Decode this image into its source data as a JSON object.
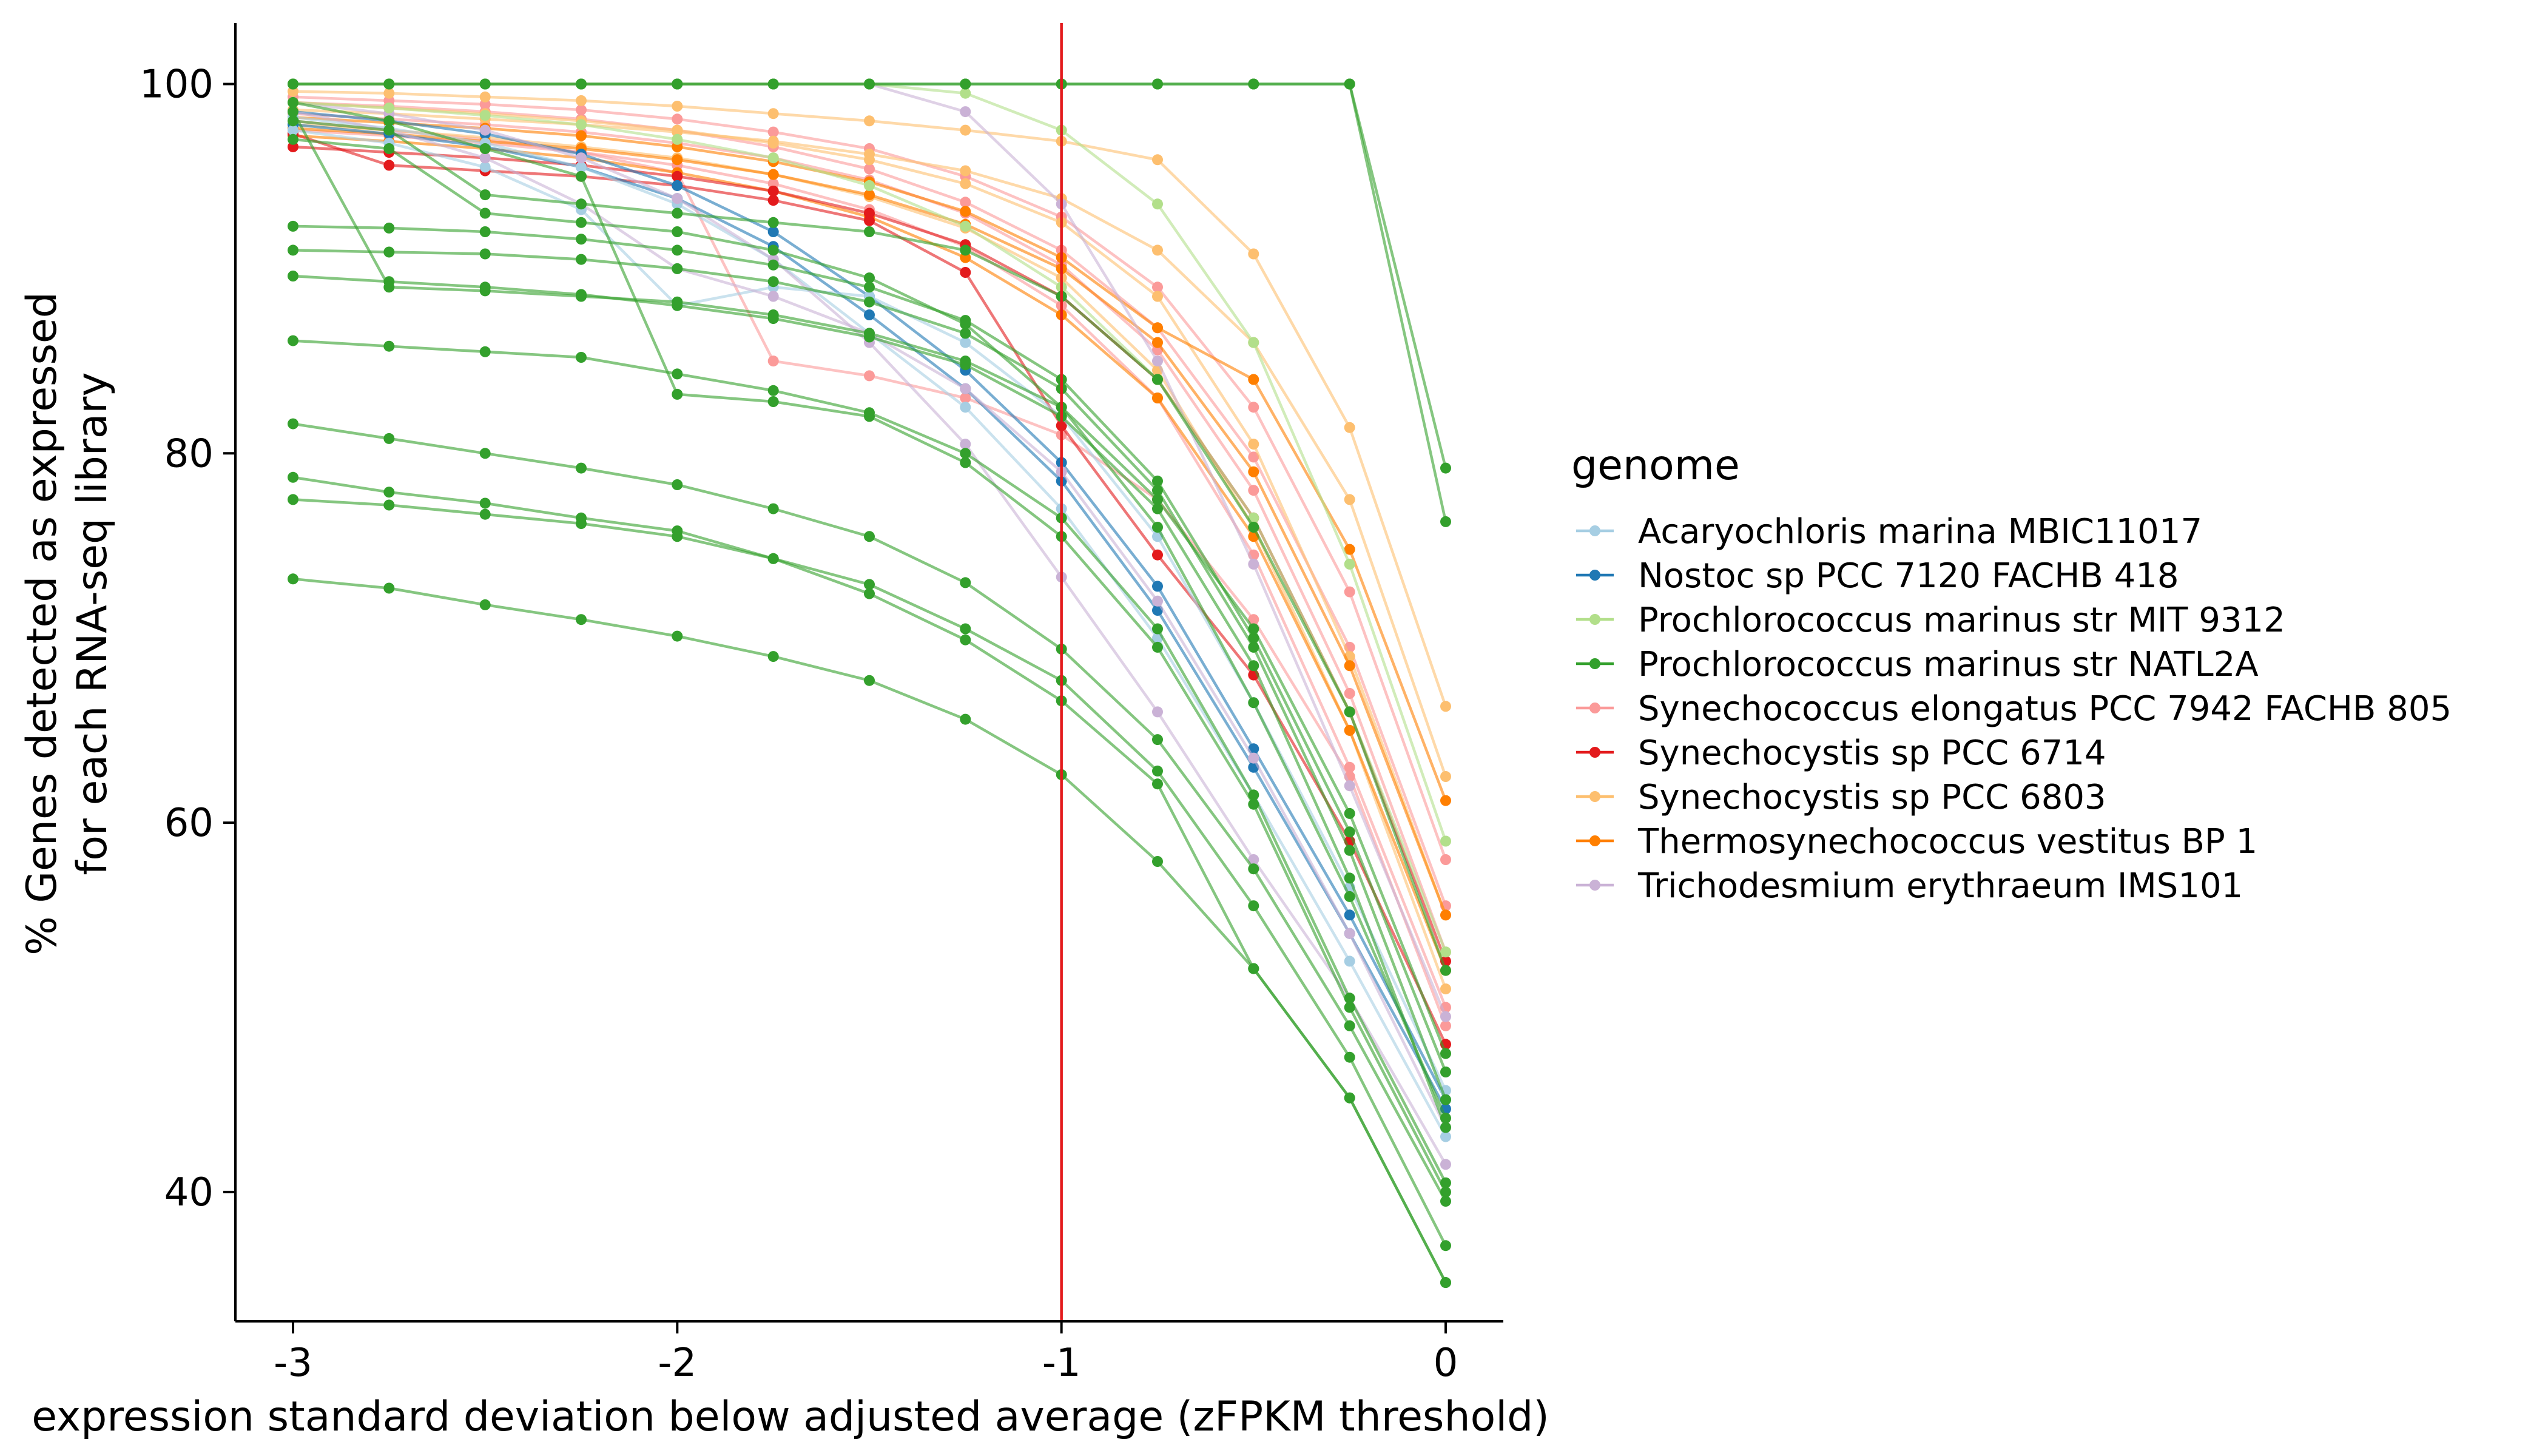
{
  "chart_data": {
    "type": "line",
    "title": "",
    "xlabel": "expression standard deviation below adjusted average (zFPKM threshold)",
    "ylabel_lines": [
      "% Genes detected as expressed",
      "for each RNA-seq library"
    ],
    "x": [
      -3,
      -2.75,
      -2.5,
      -2.25,
      -2,
      -1.75,
      -1.5,
      -1.25,
      -1,
      -0.75,
      -0.5,
      -0.25,
      0
    ],
    "xlim": [
      -3.15,
      0.15
    ],
    "ylim": [
      33,
      103.3
    ],
    "x_ticks": [
      -3,
      -2,
      -1,
      0
    ],
    "x_tick_labels": [
      "-3",
      "-2",
      "-1",
      "0"
    ],
    "y_ticks": [
      40,
      60,
      80,
      100
    ],
    "y_tick_labels": [
      "40",
      "60",
      "80",
      "100"
    ],
    "grid": false,
    "reference_line": {
      "x": -1,
      "color": "#e31a1c"
    },
    "legend": {
      "title": "genome",
      "position": "right",
      "entries": [
        {
          "name": "Acaryochloris marina MBIC11017",
          "color": "#a6cee3"
        },
        {
          "name": "Nostoc sp PCC 7120 FACHB 418",
          "color": "#1f78b4"
        },
        {
          "name": "Prochlorococcus marinus str MIT 9312",
          "color": "#b2df8a"
        },
        {
          "name": "Prochlorococcus marinus str NATL2A",
          "color": "#33a02c"
        },
        {
          "name": "Synechococcus elongatus PCC 7942 FACHB 805",
          "color": "#fb9a99"
        },
        {
          "name": "Synechocystis sp PCC 6714",
          "color": "#e31a1c"
        },
        {
          "name": "Synechocystis sp PCC 6803",
          "color": "#fdbf6f"
        },
        {
          "name": "Thermosynechococcus vestitus BP 1",
          "color": "#ff7f00"
        },
        {
          "name": "Trichodesmium erythraeum IMS101",
          "color": "#cab2d6"
        }
      ]
    },
    "series": [
      {
        "name": "Synechococcus elongatus PCC 7942 FACHB 805",
        "values": [
          99.3,
          99.1,
          98.9,
          98.6,
          98.1,
          97.4,
          96.5,
          95.0,
          92.8,
          89.0,
          82.5,
          72.5,
          58.0
        ]
      },
      {
        "name": "Synechococcus elongatus PCC 7942 FACHB 805",
        "values": [
          98.4,
          98.1,
          97.8,
          97.4,
          96.8,
          96.0,
          94.8,
          93.0,
          90.2,
          85.6,
          78.0,
          67.0,
          53.0
        ]
      },
      {
        "name": "Synechococcus elongatus PCC 7942 FACHB 805",
        "values": [
          97.5,
          97.2,
          96.8,
          96.3,
          95.6,
          94.6,
          93.2,
          91.2,
          88.0,
          83.0,
          74.5,
          63.0,
          50.0
        ]
      },
      {
        "name": "Synechococcus elongatus PCC 7942 FACHB 805",
        "values": [
          99.0,
          98.8,
          98.5,
          98.1,
          97.5,
          96.6,
          95.4,
          93.6,
          91.0,
          86.8,
          79.8,
          69.5,
          55.5
        ]
      },
      {
        "name": "Synechococcus elongatus PCC 7942 FACHB 805",
        "values": [
          98.0,
          97.5,
          97.0,
          96.3,
          95.2,
          85.0,
          84.2,
          83.0,
          81.0,
          77.5,
          71.0,
          62.5,
          49.0
        ]
      },
      {
        "name": "Synechocystis sp PCC 6803",
        "values": [
          99.6,
          99.5,
          99.3,
          99.1,
          98.8,
          98.4,
          98.0,
          97.5,
          96.9,
          95.9,
          90.8,
          81.4,
          66.3
        ]
      },
      {
        "name": "Synechocystis sp PCC 6803",
        "values": [
          98.6,
          98.4,
          98.1,
          97.8,
          97.4,
          96.9,
          96.2,
          95.3,
          93.8,
          91.0,
          86.0,
          77.5,
          62.5
        ]
      },
      {
        "name": "Synechocystis sp PCC 6803",
        "values": [
          97.8,
          97.5,
          97.1,
          96.6,
          96.0,
          95.1,
          93.9,
          92.2,
          89.5,
          84.5,
          76.0,
          65.0,
          51.0
        ]
      },
      {
        "name": "Synechocystis sp PCC 6803",
        "values": [
          99.0,
          98.7,
          98.4,
          98.0,
          97.5,
          96.8,
          95.9,
          94.6,
          92.5,
          88.5,
          80.5,
          69.0,
          55.0
        ]
      },
      {
        "name": "Thermosynechococcus vestitus BP 1",
        "values": [
          97.6,
          97.3,
          96.9,
          96.5,
          95.9,
          95.1,
          94.0,
          92.4,
          90.0,
          86.0,
          79.0,
          68.5,
          55.0
        ]
      },
      {
        "name": "Thermosynechococcus vestitus BP 1",
        "values": [
          98.2,
          97.9,
          97.6,
          97.2,
          96.6,
          95.8,
          94.7,
          93.1,
          90.6,
          86.8,
          84.0,
          74.8,
          61.2
        ]
      },
      {
        "name": "Thermosynechococcus vestitus BP 1",
        "values": [
          97.2,
          96.9,
          96.5,
          96.0,
          95.2,
          94.2,
          92.8,
          90.6,
          87.5,
          83.0,
          75.5,
          65.0,
          52.0
        ]
      },
      {
        "name": "Synechocystis sp PCC 6714",
        "values": [
          96.6,
          96.3,
          96.0,
          95.6,
          95.0,
          94.2,
          93.0,
          91.3,
          88.5,
          84.0,
          76.5,
          66.0,
          52.5
        ]
      },
      {
        "name": "Synechocystis sp PCC 6714",
        "values": [
          97.3,
          95.6,
          95.3,
          95.0,
          94.5,
          93.7,
          92.6,
          89.8,
          81.5,
          74.5,
          68.0,
          59.0,
          48.0
        ]
      },
      {
        "name": "Nostoc sp PCC 7120 FACHB 418",
        "values": [
          98.5,
          98.0,
          97.3,
          96.2,
          94.5,
          92.0,
          88.5,
          84.5,
          79.5,
          72.8,
          64.0,
          55.0,
          45.0
        ]
      },
      {
        "name": "Nostoc sp PCC 7120 FACHB 418",
        "values": [
          97.8,
          97.3,
          96.6,
          95.5,
          93.8,
          91.2,
          87.5,
          83.5,
          78.5,
          71.5,
          63.0,
          54.0,
          44.5
        ]
      },
      {
        "name": "Acaryochloris marina MBIC11017",
        "values": [
          97.5,
          96.8,
          95.5,
          93.2,
          88.0,
          89.0,
          88.5,
          86.0,
          82.0,
          75.5,
          66.5,
          56.5,
          45.5
        ]
      },
      {
        "name": "Acaryochloris marina MBIC11017",
        "values": [
          98.2,
          97.6,
          96.8,
          95.5,
          93.5,
          90.5,
          86.5,
          82.5,
          77.0,
          70.0,
          61.5,
          52.5,
          43.0
        ]
      },
      {
        "name": "Trichodesmium erythraeum IMS101",
        "values": [
          100,
          100,
          100,
          100,
          100,
          100,
          100,
          98.5,
          93.5,
          85.0,
          74.0,
          62.0,
          49.5
        ]
      },
      {
        "name": "Trichodesmium erythraeum IMS101",
        "values": [
          98.5,
          97.5,
          96.0,
          93.5,
          90.0,
          88.5,
          86.5,
          83.5,
          79.0,
          72.0,
          63.5,
          54.0,
          43.5
        ]
      },
      {
        "name": "Trichodesmium erythraeum IMS101",
        "values": [
          99.0,
          98.4,
          97.5,
          96.0,
          93.8,
          90.5,
          86.0,
          80.5,
          73.3,
          66.0,
          58.0,
          50.5,
          41.5
        ]
      },
      {
        "name": "Prochlorococcus marinus str MIT 9312",
        "values": [
          100,
          100,
          100,
          100,
          100,
          100,
          100,
          99.5,
          97.5,
          93.5,
          86.0,
          74.0,
          59.0
        ]
      },
      {
        "name": "Prochlorococcus marinus str MIT 9312",
        "values": [
          99.0,
          98.7,
          98.3,
          97.8,
          97.0,
          96.0,
          94.5,
          92.3,
          89.0,
          84.0,
          76.5,
          66.0,
          53.0
        ]
      },
      {
        "name": "Prochlorococcus marinus str NATL2A",
        "values": [
          100,
          100,
          100,
          100,
          100,
          100,
          100,
          100,
          100,
          100,
          100,
          100,
          79.2
        ]
      },
      {
        "name": "Prochlorococcus marinus str NATL2A",
        "values": [
          100,
          100,
          100,
          100,
          100,
          100,
          100,
          100,
          100,
          100,
          100,
          100,
          76.3
        ]
      },
      {
        "name": "Prochlorococcus marinus str NATL2A",
        "values": [
          92.3,
          92.2,
          92.0,
          91.6,
          91.0,
          90.2,
          89.0,
          87.2,
          84.0,
          78.5,
          70.0,
          59.5,
          46.5
        ]
      },
      {
        "name": "Prochlorococcus marinus str NATL2A",
        "values": [
          91.0,
          90.9,
          90.8,
          90.5,
          90.0,
          89.3,
          88.2,
          86.5,
          83.5,
          78.0,
          69.5,
          58.5,
          45.0
        ]
      },
      {
        "name": "Prochlorococcus marinus str NATL2A",
        "values": [
          89.6,
          89.3,
          89.0,
          88.6,
          88.0,
          87.3,
          86.3,
          84.8,
          82.0,
          77.0,
          68.5,
          57.0,
          43.5
        ]
      },
      {
        "name": "Prochlorococcus marinus str NATL2A",
        "values": [
          98.5,
          89.0,
          88.8,
          88.5,
          88.2,
          87.5,
          86.5,
          85.0,
          82.5,
          77.5,
          70.5,
          60.5,
          47.5
        ]
      },
      {
        "name": "Prochlorococcus marinus str NATL2A",
        "values": [
          86.1,
          85.8,
          85.5,
          85.2,
          84.3,
          83.4,
          82.2,
          80.0,
          76.5,
          70.5,
          61.5,
          50.5,
          40.5
        ]
      },
      {
        "name": "Prochlorococcus marinus str NATL2A",
        "values": [
          99.0,
          98.0,
          96.5,
          95.0,
          83.2,
          82.8,
          82.0,
          79.5,
          75.5,
          69.5,
          61.0,
          50.0,
          40.0
        ]
      },
      {
        "name": "Prochlorococcus marinus str NATL2A",
        "values": [
          81.6,
          80.8,
          80.0,
          79.2,
          78.3,
          77.0,
          75.5,
          73.0,
          69.4,
          64.5,
          57.5,
          49.0,
          39.5
        ]
      },
      {
        "name": "Prochlorococcus marinus str NATL2A",
        "values": [
          78.7,
          77.9,
          77.3,
          76.5,
          75.8,
          74.3,
          72.9,
          70.5,
          67.7,
          62.8,
          55.5,
          47.3,
          37.1
        ]
      },
      {
        "name": "Prochlorococcus marinus str NATL2A",
        "values": [
          77.5,
          77.2,
          76.7,
          76.2,
          75.5,
          74.3,
          72.4,
          69.9,
          66.6,
          62.1,
          52.1,
          45.1,
          35.1
        ]
      },
      {
        "name": "Prochlorococcus marinus str NATL2A",
        "values": [
          73.2,
          72.7,
          71.8,
          71.0,
          70.1,
          69.0,
          67.7,
          65.6,
          62.6,
          57.9,
          52.1,
          45.1,
          35.1
        ]
      },
      {
        "name": "Prochlorococcus marinus str NATL2A",
        "values": [
          98.0,
          97.5,
          94.0,
          93.5,
          93.0,
          92.5,
          92.0,
          91.0,
          88.5,
          84.0,
          76.0,
          66.0,
          52.0
        ]
      },
      {
        "name": "Prochlorococcus marinus str NATL2A",
        "values": [
          97.0,
          96.5,
          93.0,
          92.5,
          92.0,
          91.0,
          89.5,
          87.0,
          82.5,
          76.0,
          66.5,
          56.0,
          44.0
        ]
      }
    ]
  }
}
